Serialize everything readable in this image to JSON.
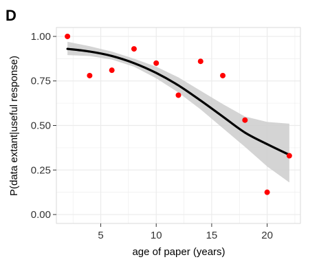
{
  "chart_data": {
    "type": "scatter",
    "panel_label": "D",
    "title": "",
    "xlabel": "age of paper (years)",
    "ylabel": "P(data extant|useful response)",
    "xlim": [
      1.0,
      23.0
    ],
    "ylim": [
      -0.05,
      1.05
    ],
    "x_ticks": [
      5,
      10,
      15,
      20
    ],
    "x_tick_labels": [
      "5",
      "10",
      "15",
      "20"
    ],
    "y_ticks": [
      0,
      0.25,
      0.5,
      0.75,
      1.0
    ],
    "y_tick_labels": [
      "0.00",
      "0.25",
      "0.50",
      "0.75",
      "1.00"
    ],
    "grid": true,
    "legend": "none",
    "background_color": "#ffffff",
    "grid_color": "#ebebeb",
    "point_color": "#ff0000",
    "fit_line_color": "#000000",
    "ribbon_color": "#cccccc",
    "points": [
      {
        "x": 2,
        "y": 1.0
      },
      {
        "x": 4,
        "y": 0.78
      },
      {
        "x": 6,
        "y": 0.81
      },
      {
        "x": 8,
        "y": 0.93
      },
      {
        "x": 10,
        "y": 0.85
      },
      {
        "x": 12,
        "y": 0.67
      },
      {
        "x": 14,
        "y": 0.86
      },
      {
        "x": 16,
        "y": 0.78
      },
      {
        "x": 18,
        "y": 0.53
      },
      {
        "x": 20,
        "y": 0.125
      },
      {
        "x": 22,
        "y": 0.33
      }
    ],
    "fit": {
      "x": [
        2,
        4,
        6,
        8,
        10,
        12,
        14,
        16,
        18,
        20,
        22
      ],
      "y": [
        0.93,
        0.915,
        0.89,
        0.85,
        0.795,
        0.725,
        0.64,
        0.55,
        0.46,
        0.395,
        0.335
      ],
      "lower": [
        0.895,
        0.89,
        0.87,
        0.83,
        0.765,
        0.685,
        0.59,
        0.485,
        0.38,
        0.27,
        0.18
      ],
      "upper": [
        0.97,
        0.945,
        0.915,
        0.875,
        0.83,
        0.77,
        0.695,
        0.62,
        0.55,
        0.52,
        0.51
      ]
    }
  }
}
